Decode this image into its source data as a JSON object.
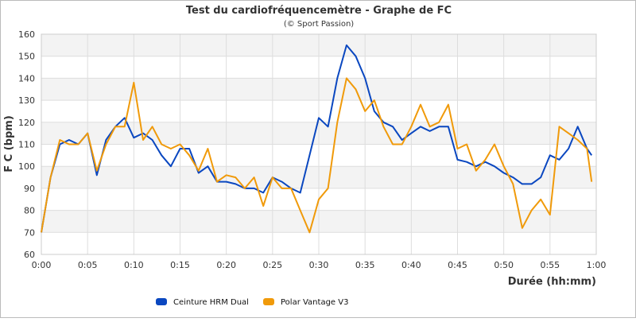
{
  "chart_data": {
    "type": "line",
    "title": "Test du cardiofréquencemètre - Graphe de FC",
    "subtitle": "(© Sport Passion)",
    "xlabel": "Durée (hh:mm)",
    "ylabel": "F C (bpm)",
    "xlim": [
      0,
      60
    ],
    "ylim": [
      60,
      160
    ],
    "x_ticks": [
      "0:00",
      "0:05",
      "0:10",
      "0:15",
      "0:20",
      "0:25",
      "0:30",
      "0:35",
      "0:40",
      "0:45",
      "0:50",
      "0:55",
      "1:00"
    ],
    "y_ticks": [
      60,
      70,
      80,
      90,
      100,
      110,
      120,
      130,
      140,
      150,
      160
    ],
    "grid": true,
    "legend_position": "bottom",
    "x_minutes": [
      0,
      1,
      2,
      3,
      4,
      5,
      6,
      7,
      8,
      9,
      10,
      11,
      12,
      13,
      14,
      15,
      16,
      17,
      18,
      19,
      20,
      21,
      22,
      23,
      24,
      25,
      26,
      27,
      28,
      29,
      30,
      31,
      32,
      33,
      34,
      35,
      36,
      37,
      38,
      39,
      40,
      41,
      42,
      43,
      44,
      45,
      46,
      47,
      48,
      49,
      50,
      51,
      52,
      53,
      54,
      55,
      56,
      57,
      58,
      59,
      59.5
    ],
    "series": [
      {
        "name": "Ceinture HRM Dual",
        "color": "#0a47c0",
        "values": [
          70,
          95,
          110,
          112,
          110,
          115,
          96,
          112,
          118,
          122,
          113,
          115,
          112,
          105,
          100,
          108,
          108,
          97,
          100,
          93,
          93,
          92,
          90,
          90,
          88,
          95,
          93,
          90,
          88,
          105,
          122,
          118,
          140,
          155,
          150,
          140,
          125,
          120,
          118,
          112,
          115,
          118,
          116,
          118,
          118,
          103,
          102,
          100,
          102,
          100,
          97,
          95,
          92,
          92,
          95,
          105,
          103,
          108,
          118,
          108,
          105
        ]
      },
      {
        "name": "Polar Vantage V3",
        "color": "#f09a0a",
        "values": [
          70,
          95,
          112,
          110,
          110,
          115,
          98,
          110,
          118,
          118,
          138,
          112,
          118,
          110,
          108,
          110,
          105,
          98,
          108,
          93,
          96,
          95,
          90,
          95,
          82,
          95,
          90,
          90,
          80,
          70,
          85,
          90,
          120,
          140,
          135,
          125,
          130,
          118,
          110,
          110,
          118,
          128,
          118,
          120,
          128,
          108,
          110,
          98,
          103,
          110,
          100,
          92,
          72,
          80,
          85,
          78,
          118,
          115,
          112,
          108,
          93
        ]
      }
    ]
  }
}
